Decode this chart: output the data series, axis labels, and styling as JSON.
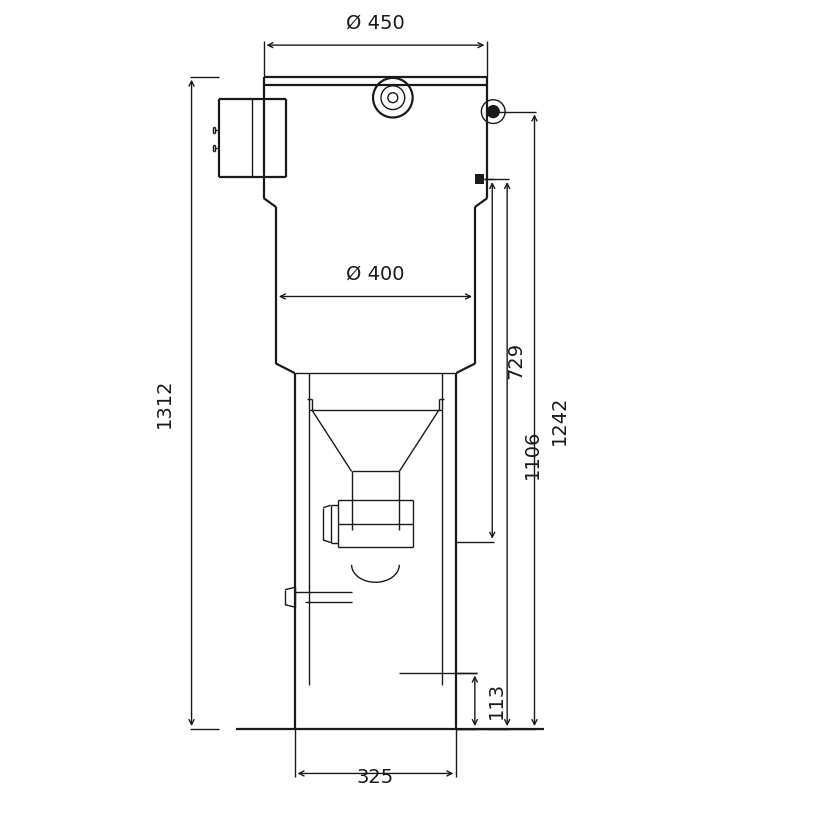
{
  "bg_color": "#ffffff",
  "lc": "#1a1a1a",
  "lw": 1.6,
  "tw": 1.0,
  "dw": 1.0,
  "fs": 14,
  "dim_450": "Ø 450",
  "dim_400": "Ø 400",
  "dim_1312": "1312",
  "dim_1242": "1242",
  "dim_1106": "1106",
  "dim_729": "729",
  "dim_113": "113",
  "dim_325": "325",
  "scale": 0.502,
  "ox": 375,
  "oy": 108
}
